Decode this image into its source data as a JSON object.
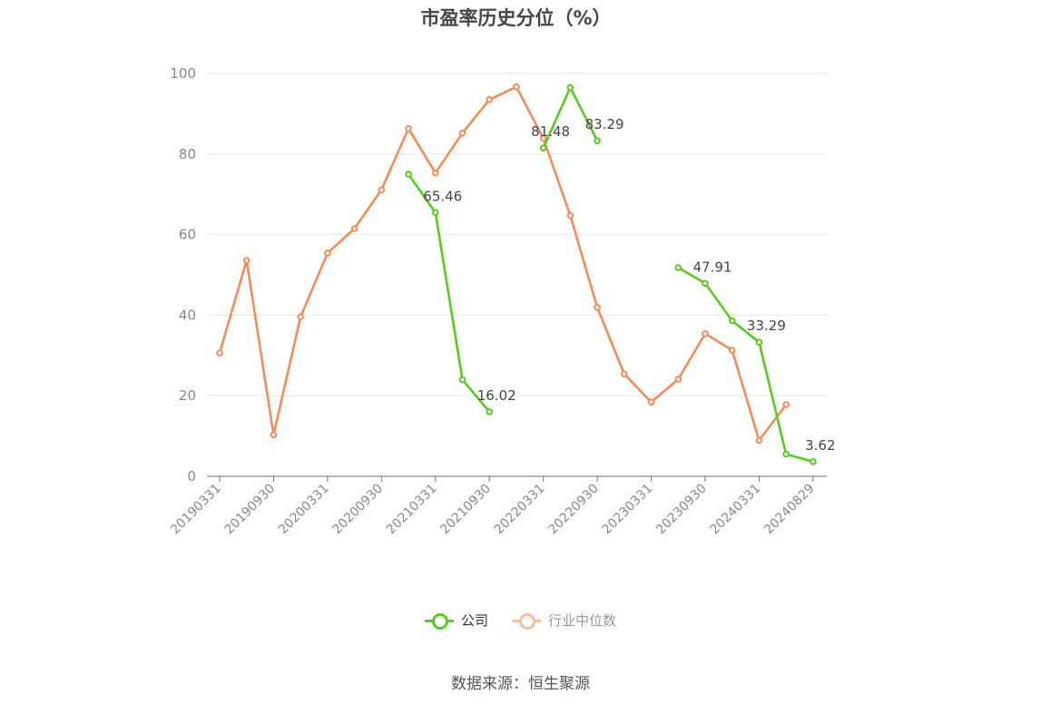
{
  "chart_data": {
    "type": "line",
    "title": "市盈率历史分位（%）",
    "ylim": [
      0,
      100
    ],
    "yticks": [
      0,
      20,
      40,
      60,
      80,
      100
    ],
    "x_tick_labels": [
      "20190331",
      "20190930",
      "20200331",
      "20200930",
      "20210331",
      "20210930",
      "20220331",
      "20220930",
      "20230331",
      "20230930",
      "20240331",
      "20240829"
    ],
    "x": [
      "20190331",
      "20190630",
      "20190930",
      "20191231",
      "20200331",
      "20200630",
      "20200930",
      "20201231",
      "20210331",
      "20210630",
      "20210930",
      "20211231",
      "20220331",
      "20220630",
      "20220930",
      "20221231",
      "20230331",
      "20230630",
      "20230930",
      "20231231",
      "20240331",
      "20240630",
      "20240829"
    ],
    "series": [
      {
        "name": "公司",
        "color": "#5ac725",
        "values": [
          null,
          null,
          null,
          null,
          null,
          null,
          null,
          75.0,
          65.46,
          24.0,
          16.02,
          null,
          81.48,
          96.5,
          83.29,
          null,
          null,
          51.8,
          47.91,
          38.6,
          33.29,
          5.5,
          3.62
        ],
        "data_labels": [
          {
            "x": "20210331",
            "text": "65.46"
          },
          {
            "x": "20210930",
            "text": "16.02"
          },
          {
            "x": "20220331",
            "text": "81.48"
          },
          {
            "x": "20220930",
            "text": "83.29"
          },
          {
            "x": "20230930",
            "text": "47.91"
          },
          {
            "x": "20240331",
            "text": "33.29"
          },
          {
            "x": "20240829",
            "text": "3.62"
          }
        ]
      },
      {
        "name": "行业中位数",
        "color": "#f28c5a",
        "legend_color": "#f6bda3",
        "values": [
          30.6,
          53.6,
          10.3,
          39.6,
          55.4,
          61.5,
          71.1,
          86.3,
          75.3,
          85.2,
          93.5,
          96.7,
          83.9,
          64.7,
          41.9,
          25.4,
          18.4,
          24.1,
          35.4,
          31.3,
          8.9,
          17.8,
          null
        ]
      }
    ],
    "grid": true,
    "legend_position": "bottom-center"
  },
  "source": "数据来源：恒生聚源"
}
